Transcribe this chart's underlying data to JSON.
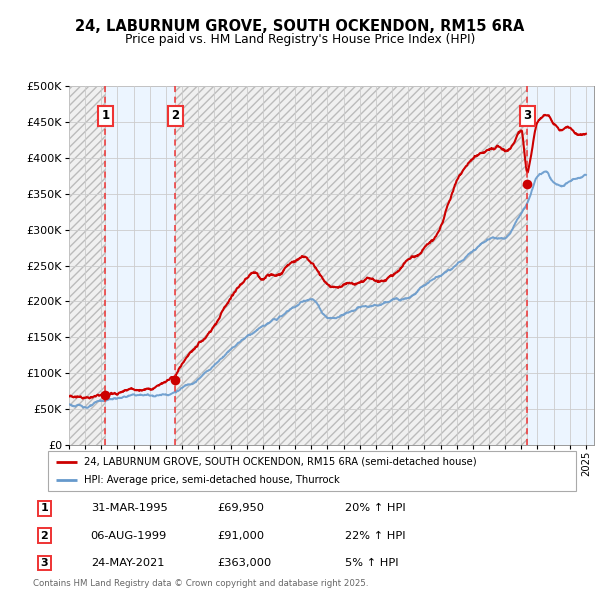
{
  "title": "24, LABURNUM GROVE, SOUTH OCKENDON, RM15 6RA",
  "subtitle": "Price paid vs. HM Land Registry's House Price Index (HPI)",
  "xlim_start": 1993.0,
  "xlim_end": 2025.5,
  "ylim_min": 0,
  "ylim_max": 500000,
  "yticks": [
    0,
    50000,
    100000,
    150000,
    200000,
    250000,
    300000,
    350000,
    400000,
    450000,
    500000
  ],
  "ytick_labels": [
    "£0",
    "£50K",
    "£100K",
    "£150K",
    "£200K",
    "£250K",
    "£300K",
    "£350K",
    "£400K",
    "£450K",
    "£500K"
  ],
  "xticks": [
    1993,
    1994,
    1995,
    1996,
    1997,
    1998,
    1999,
    2000,
    2001,
    2002,
    2003,
    2004,
    2005,
    2006,
    2007,
    2008,
    2009,
    2010,
    2011,
    2012,
    2013,
    2014,
    2015,
    2016,
    2017,
    2018,
    2019,
    2020,
    2021,
    2022,
    2023,
    2024,
    2025
  ],
  "sale_dates": [
    1995.25,
    1999.58,
    2021.38
  ],
  "sale_prices": [
    69950,
    91000,
    363000
  ],
  "sale_labels": [
    "1",
    "2",
    "3"
  ],
  "legend_line1": "24, LABURNUM GROVE, SOUTH OCKENDON, RM15 6RA (semi-detached house)",
  "legend_line2": "HPI: Average price, semi-detached house, Thurrock",
  "table_data": [
    [
      "1",
      "31-MAR-1995",
      "£69,950",
      "20% ↑ HPI"
    ],
    [
      "2",
      "06-AUG-1999",
      "£91,000",
      "22% ↑ HPI"
    ],
    [
      "3",
      "24-MAY-2021",
      "£363,000",
      "5% ↑ HPI"
    ]
  ],
  "footnote": "Contains HM Land Registry data © Crown copyright and database right 2025.\nThis data is licensed under the Open Government Licence v3.0.",
  "hpi_color": "#6699cc",
  "price_color": "#cc0000",
  "dashed_line_color": "#ee3333",
  "bg_main_color": "#ddeeff",
  "grid_color": "#cccccc",
  "hpi_knots_x": [
    1993.0,
    1994.0,
    1995.0,
    1996.0,
    1997.0,
    1998.0,
    1999.0,
    2000.0,
    2001.0,
    2002.0,
    2003.0,
    2004.0,
    2005.0,
    2006.0,
    2007.0,
    2008.0,
    2009.0,
    2009.5,
    2010.0,
    2010.5,
    2011.0,
    2012.0,
    2013.0,
    2014.0,
    2015.0,
    2016.0,
    2017.0,
    2018.0,
    2019.0,
    2020.0,
    2021.0,
    2021.5,
    2022.0,
    2022.5,
    2023.0,
    2023.5,
    2024.0,
    2024.5,
    2025.0
  ],
  "hpi_knots_y": [
    57000,
    54000,
    60000,
    64000,
    67000,
    67000,
    70000,
    80000,
    95000,
    115000,
    140000,
    160000,
    175000,
    185000,
    200000,
    210000,
    180000,
    178000,
    185000,
    190000,
    195000,
    195000,
    200000,
    210000,
    230000,
    245000,
    260000,
    280000,
    300000,
    305000,
    340000,
    360000,
    390000,
    395000,
    380000,
    375000,
    380000,
    385000,
    390000
  ],
  "red_knots_x": [
    1993.0,
    1994.0,
    1995.0,
    1995.25,
    1996.0,
    1997.0,
    1998.0,
    1999.0,
    1999.58,
    2000.0,
    2001.0,
    2002.0,
    2003.0,
    2003.5,
    2004.0,
    2004.5,
    2005.0,
    2005.5,
    2006.0,
    2006.5,
    2007.0,
    2007.5,
    2008.0,
    2008.5,
    2009.0,
    2009.5,
    2010.0,
    2010.5,
    2011.0,
    2011.5,
    2012.0,
    2012.5,
    2013.0,
    2014.0,
    2015.0,
    2016.0,
    2016.5,
    2017.0,
    2017.5,
    2018.0,
    2018.5,
    2019.0,
    2019.5,
    2020.0,
    2020.5,
    2021.0,
    2021.38,
    2021.5,
    2022.0,
    2022.5,
    2023.0,
    2023.5,
    2024.0,
    2024.5,
    2025.0
  ],
  "red_knots_y": [
    68000,
    67000,
    70000,
    69950,
    73000,
    75000,
    78000,
    85000,
    91000,
    105000,
    125000,
    155000,
    195000,
    210000,
    220000,
    230000,
    225000,
    230000,
    230000,
    245000,
    255000,
    265000,
    260000,
    245000,
    230000,
    225000,
    228000,
    230000,
    232000,
    235000,
    230000,
    228000,
    235000,
    255000,
    270000,
    300000,
    330000,
    360000,
    375000,
    385000,
    390000,
    395000,
    400000,
    395000,
    410000,
    425000,
    363000,
    375000,
    430000,
    440000,
    430000,
    420000,
    425000,
    415000,
    415000
  ]
}
